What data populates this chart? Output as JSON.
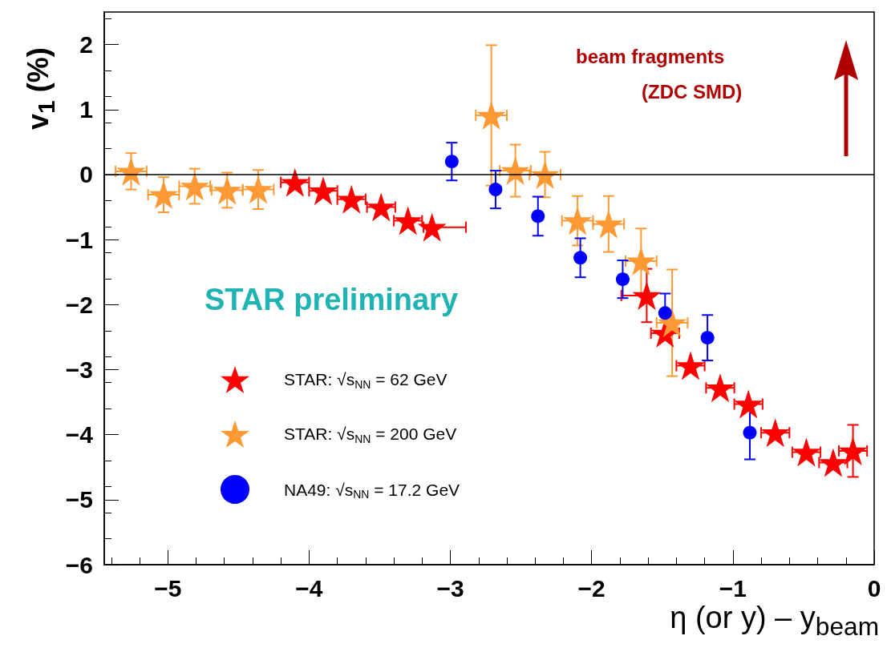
{
  "chart_data": {
    "type": "scatter",
    "xlabel": "η (or y) – y$_{beam}$",
    "ylabel": "v$_{1}$ (%)",
    "xlim": [
      -5.45,
      0
    ],
    "ylim": [
      -6,
      2.5
    ],
    "xticks": [
      {
        "value": -5,
        "label": "−5"
      },
      {
        "value": -4,
        "label": "−4"
      },
      {
        "value": -3,
        "label": "−3"
      },
      {
        "value": -2,
        "label": "−2"
      },
      {
        "value": -1,
        "label": "−1"
      },
      0
    ],
    "yticks": [
      {
        "value": -6,
        "label": "−6"
      },
      {
        "value": -5,
        "label": "−5"
      },
      {
        "value": -4,
        "label": "−4"
      },
      {
        "value": -3,
        "label": "−3"
      },
      {
        "value": -2,
        "label": "−2"
      },
      {
        "value": -1,
        "label": "−1"
      },
      0,
      1,
      2
    ],
    "grid": false,
    "legend": "bottom left",
    "annotations": [
      "STAR preliminary",
      "beam fragments",
      "(ZDC SMD)"
    ],
    "ref_lines": [
      {
        "axis": "y",
        "value": 0,
        "label": null,
        "color": "#000000",
        "line_style": "solid"
      }
    ],
    "series": [
      {
        "name": "STAR: √s$_{NN}$ = 62 GeV",
        "color": "#ff0000",
        "marker": "star",
        "x": [
          -4.1,
          -3.9,
          -3.7,
          -3.49,
          -3.3,
          -3.13,
          -1.61,
          -1.48,
          -1.3,
          -1.09,
          -0.89,
          -0.7,
          -0.48,
          -0.29,
          -0.15
        ],
        "values": [
          -0.12,
          -0.25,
          -0.38,
          -0.5,
          -0.71,
          -0.81,
          -1.86,
          -2.44,
          -2.94,
          -3.28,
          -3.53,
          -3.97,
          -4.27,
          -4.43,
          -4.25
        ],
        "errors": [
          null,
          null,
          null,
          null,
          null,
          null,
          0.41,
          null,
          null,
          null,
          null,
          null,
          null,
          null,
          0.4
        ],
        "xerrors": [
          0.1,
          0.1,
          0.1,
          0.1,
          0.1,
          [
            -3.19,
            -2.89
          ],
          [
            -1.79,
            -1.61
          ],
          0.1,
          0.1,
          0.1,
          0.1,
          0.1,
          0.1,
          0.1,
          0.1
        ]
      },
      {
        "name": "STAR: √s$_{NN}$ = 200 GeV",
        "color": "#ff9933",
        "marker": "star",
        "x": [
          -5.26,
          -5.03,
          -4.81,
          -4.58,
          -4.36,
          -2.71,
          -2.54,
          -2.33,
          -2.1,
          -1.88,
          -1.65,
          -1.43
        ],
        "values": [
          0.05,
          -0.31,
          -0.18,
          -0.24,
          -0.23,
          0.91,
          0.06,
          0.0,
          -0.71,
          -0.76,
          -1.33,
          -2.28
        ],
        "errors": [
          0.28,
          0.27,
          0.27,
          0.27,
          0.3,
          1.08,
          0.4,
          0.35,
          0.38,
          0.43,
          0.5,
          0.82
        ],
        "xerrors": [
          0.11,
          0.11,
          0.11,
          0.11,
          0.11,
          0.11,
          0.11,
          0.11,
          0.11,
          0.11,
          0.11,
          0.11
        ]
      },
      {
        "name": "NA49: √s$_{NN}$ = 17.2 GeV",
        "color": "#0000ff",
        "marker": "circle",
        "x": [
          -2.99,
          -2.68,
          -2.38,
          -2.08,
          -1.78,
          -1.48,
          -1.18,
          -0.88
        ],
        "values": [
          0.2,
          -0.23,
          -0.64,
          -1.28,
          -1.61,
          -2.13,
          -2.51,
          -3.97
        ],
        "errors": [
          0.29,
          0.29,
          0.3,
          0.3,
          0.29,
          0.3,
          0.35,
          0.41
        ]
      }
    ]
  }
}
